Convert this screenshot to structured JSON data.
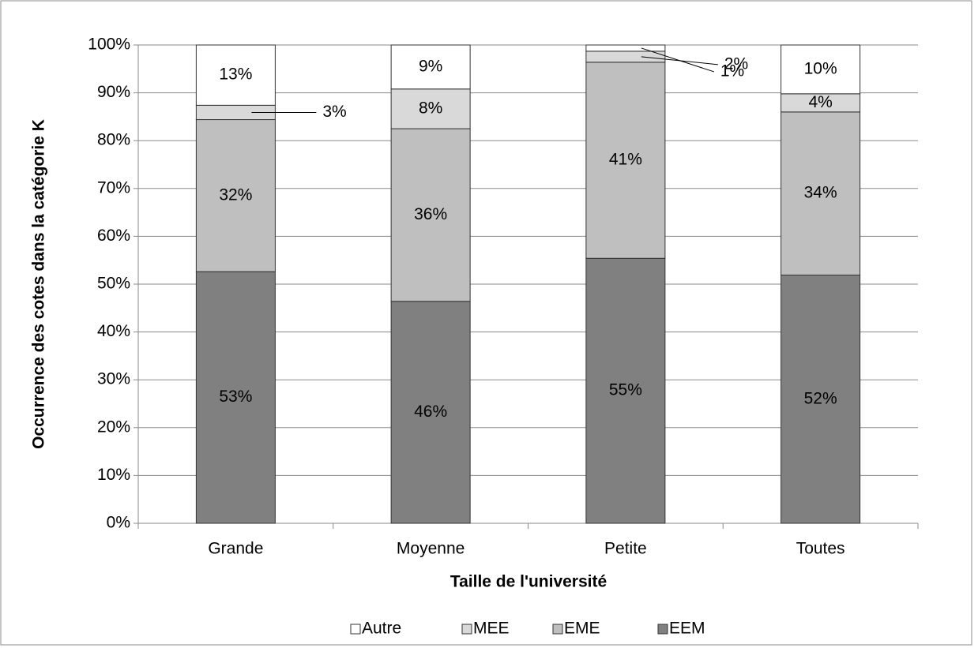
{
  "chart_data": {
    "type": "bar",
    "stacked": true,
    "x_label": "Taille de l'université",
    "y_label": "Occurrence des cotes dans la catégorie K",
    "categories": [
      "Grande",
      "Moyenne",
      "Petite",
      "Toutes"
    ],
    "series": [
      {
        "name": "EEM",
        "color": "#808080",
        "values": [
          52.6,
          46.4,
          55.4,
          51.9
        ],
        "value_labels": [
          "53%",
          "46%",
          "55%",
          "52%"
        ]
      },
      {
        "name": "EME",
        "color": "#bfbfbf",
        "values": [
          31.8,
          36.1,
          41.0,
          34.1
        ],
        "value_labels": [
          "32%",
          "36%",
          "41%",
          "34%"
        ]
      },
      {
        "name": "MEE",
        "color": "#d9d9d9",
        "values": [
          3.0,
          8.3,
          2.3,
          3.8
        ],
        "value_labels": [
          "3%",
          "8%",
          "2%",
          "4%"
        ]
      },
      {
        "name": "Autre",
        "color": "#ffffff",
        "values": [
          12.6,
          9.2,
          1.3,
          10.2
        ],
        "value_labels": [
          "13%",
          "9%",
          "1%",
          "10%"
        ]
      }
    ],
    "ylim": [
      0,
      100
    ],
    "yticks": [
      {
        "value": 0,
        "label": "0%"
      },
      {
        "value": 10,
        "label": "10%"
      },
      {
        "value": 20,
        "label": "20%"
      },
      {
        "value": 30,
        "label": "30%"
      },
      {
        "value": 40,
        "label": "40%"
      },
      {
        "value": 50,
        "label": "50%"
      },
      {
        "value": 60,
        "label": "60%"
      },
      {
        "value": 70,
        "label": "70%"
      },
      {
        "value": 80,
        "label": "80%"
      },
      {
        "value": 90,
        "label": "90%"
      },
      {
        "value": 100,
        "label": "100%"
      }
    ],
    "grid": true,
    "legend": "bottom"
  }
}
